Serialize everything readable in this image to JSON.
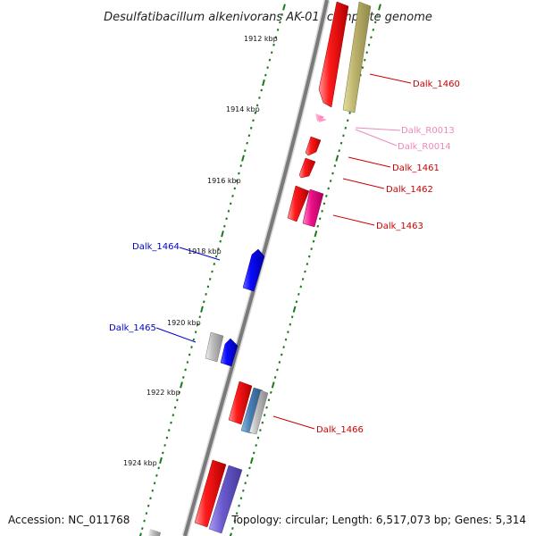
{
  "title": "Desulfatibacillum alkenivorans AK-01, complete genome",
  "footer": {
    "accession": "Accession: NC_011768",
    "info": "Topology: circular; Length: 6,517,073 bp; Genes: 5,314"
  },
  "kbp_labels": [
    "1912 kbp",
    "1914 kbp",
    "1916 kbp",
    "1918 kbp",
    "1920 kbp",
    "1922 kbp",
    "1924 kbp"
  ],
  "gene_labels": [
    {
      "text": "Dalk_1460",
      "color": "#cc0000"
    },
    {
      "text": "Dalk_R0013",
      "color": "#ee88bb"
    },
    {
      "text": "Dalk_R0014",
      "color": "#ee88bb"
    },
    {
      "text": "Dalk_1461",
      "color": "#cc0000"
    },
    {
      "text": "Dalk_1462",
      "color": "#cc0000"
    },
    {
      "text": "Dalk_1463",
      "color": "#cc0000"
    },
    {
      "text": "Dalk_1464",
      "color": "#0000cc"
    },
    {
      "text": "Dalk_1465",
      "color": "#0000cc"
    },
    {
      "text": "Dalk_1466",
      "color": "#cc0000"
    }
  ],
  "colors": {
    "backbone": "#777777",
    "tick": "#1a7a1a",
    "cds_forward": "#ee0000",
    "cds_reverse": "#0000ee",
    "rna": "#ff66aa",
    "gc_skew": "#b7ae6a",
    "misc_feature": "#ee1188",
    "grey_feature": "#aaaaaa",
    "steel_feature": "#4477aa",
    "violet_feature": "#6a5acd"
  }
}
